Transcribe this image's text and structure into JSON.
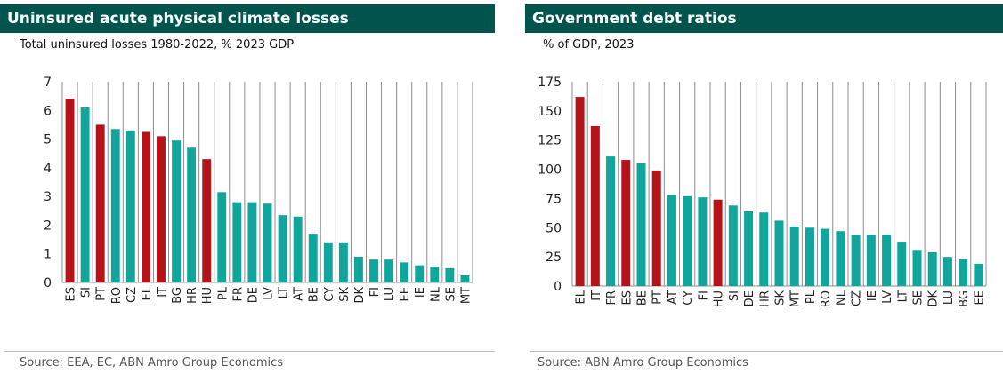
{
  "colors": {
    "header_bg": "#00544e",
    "teal": "#12a59c",
    "red": "#b5131a",
    "grid": "#8c8c8c"
  },
  "panels": [
    {
      "title": "Uninsured acute physical climate losses",
      "subtitle": "Total uninsured losses 1980-2022, % 2023 GDP",
      "source": "Source: EEA, EC, ABN Amro Group Economics"
    },
    {
      "title": "Government debt ratios",
      "subtitle": "% of GDP, 2023",
      "source": "Source: ABN Amro Group Economics"
    }
  ],
  "chart_data": [
    {
      "type": "bar",
      "title": "Uninsured acute physical climate losses",
      "subtitle": "Total uninsured losses 1980-2022, % 2023 GDP",
      "categories": [
        "ES",
        "SI",
        "PT",
        "RO",
        "CZ",
        "EL",
        "IT",
        "BG",
        "HR",
        "HU",
        "PL",
        "FR",
        "DE",
        "LV",
        "LT",
        "AT",
        "BE",
        "CY",
        "SK",
        "DK",
        "FI",
        "LU",
        "EE",
        "IE",
        "NL",
        "SE",
        "MT"
      ],
      "values": [
        6.4,
        6.1,
        5.5,
        5.35,
        5.3,
        5.25,
        5.1,
        4.95,
        4.7,
        4.3,
        3.15,
        2.8,
        2.8,
        2.75,
        2.35,
        2.3,
        1.7,
        1.4,
        1.4,
        0.9,
        0.8,
        0.8,
        0.7,
        0.6,
        0.55,
        0.5,
        0.25
      ],
      "highlight": [
        "ES",
        "PT",
        "EL",
        "IT",
        "HU"
      ],
      "ylim": [
        0,
        7
      ],
      "yticks": [
        0,
        1,
        2,
        3,
        4,
        5,
        6,
        7
      ]
    },
    {
      "type": "bar",
      "title": "Government debt ratios",
      "subtitle": "% of GDP, 2023",
      "categories": [
        "EL",
        "IT",
        "FR",
        "ES",
        "BE",
        "PT",
        "AT",
        "CY",
        "FI",
        "HU",
        "SI",
        "DE",
        "HR",
        "SK",
        "MT",
        "PL",
        "RO",
        "NL",
        "CZ",
        "IE",
        "LV",
        "LT",
        "SE",
        "DK",
        "LU",
        "BG",
        "EE"
      ],
      "values": [
        162,
        137,
        111,
        108,
        105,
        99,
        78,
        77,
        76,
        74,
        69,
        64,
        63,
        56,
        51,
        50,
        49,
        47,
        44,
        44,
        44,
        38,
        31,
        29,
        25,
        23,
        19
      ],
      "highlight": [
        "EL",
        "IT",
        "ES",
        "PT",
        "HU"
      ],
      "ylim": [
        0,
        175
      ],
      "yticks": [
        0,
        25,
        50,
        75,
        100,
        125,
        150,
        175
      ]
    }
  ]
}
